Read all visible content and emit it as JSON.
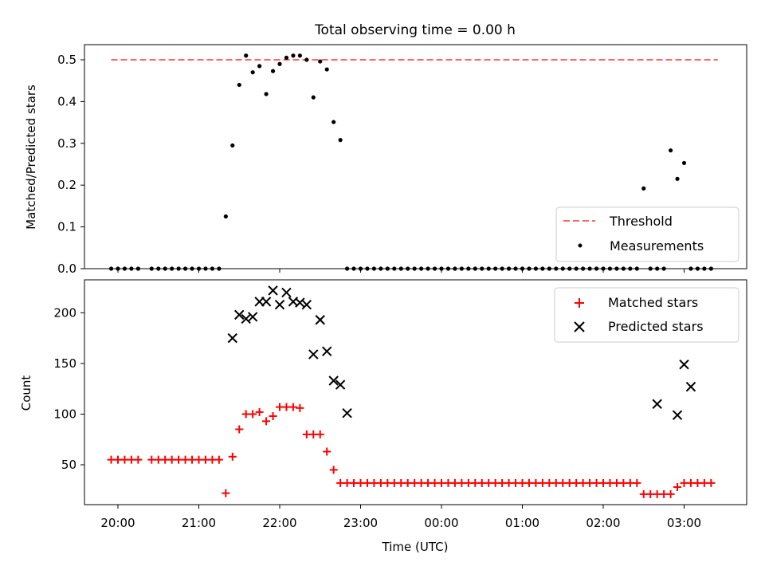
{
  "chart_data": [
    {
      "type": "scatter",
      "title": "Total observing time = 0.00 h",
      "xlabel": "",
      "ylabel": "Matched/Predicted stars",
      "ylim": [
        0,
        0.53
      ],
      "yticks": [
        "0.0",
        "0.1",
        "0.2",
        "0.3",
        "0.4",
        "0.5"
      ],
      "legend_position": "lower-right",
      "threshold": {
        "name": "Threshold",
        "value": 0.5,
        "x_range": [
          "19:55",
          "03:25"
        ],
        "color": "#ff6666"
      },
      "series": [
        {
          "name": "Measurements",
          "color": "#000000",
          "x": [
            "19:55",
            "20:00",
            "20:05",
            "20:10",
            "20:15",
            "20:25",
            "20:30",
            "20:35",
            "20:40",
            "20:45",
            "20:50",
            "20:55",
            "21:00",
            "21:05",
            "21:10",
            "21:15",
            "21:20",
            "21:25",
            "21:30",
            "21:35",
            "21:40",
            "21:45",
            "21:50",
            "21:55",
            "22:00",
            "22:05",
            "22:10",
            "22:15",
            "22:20",
            "22:25",
            "22:30",
            "22:35",
            "22:40",
            "22:45",
            "22:50",
            "22:55",
            "23:00",
            "23:05",
            "23:10",
            "23:15",
            "23:20",
            "23:25",
            "23:30",
            "23:35",
            "23:40",
            "23:45",
            "23:50",
            "23:55",
            "00:00",
            "00:05",
            "00:10",
            "00:15",
            "00:20",
            "00:25",
            "00:30",
            "00:35",
            "00:40",
            "00:45",
            "00:50",
            "00:55",
            "01:00",
            "01:05",
            "01:10",
            "01:15",
            "01:20",
            "01:25",
            "01:30",
            "01:35",
            "01:40",
            "01:45",
            "01:50",
            "01:55",
            "02:00",
            "02:05",
            "02:10",
            "02:15",
            "02:20",
            "02:25",
            "02:30",
            "02:35",
            "02:40",
            "02:45",
            "02:50",
            "02:55",
            "03:00",
            "03:05",
            "03:10",
            "03:15",
            "03:20"
          ],
          "y": [
            0,
            0,
            0,
            0,
            0,
            0,
            0,
            0,
            0,
            0,
            0,
            0,
            0,
            0,
            0,
            0,
            0.125,
            0.295,
            0.44,
            0.51,
            0.47,
            0.485,
            0.418,
            0.473,
            0.49,
            0.505,
            0.51,
            0.51,
            0.5,
            0.41,
            0.496,
            0.477,
            0.351,
            0.308,
            0,
            0,
            0,
            0,
            0,
            0,
            0,
            0,
            0,
            0,
            0,
            0,
            0,
            0,
            0,
            0,
            0,
            0,
            0,
            0,
            0,
            0,
            0,
            0,
            0,
            0,
            0,
            0,
            0,
            0,
            0,
            0,
            0,
            0,
            0,
            0,
            0,
            0,
            0,
            0,
            0,
            0,
            0,
            0,
            0.192,
            0,
            0,
            0,
            0.283,
            0.215,
            0.253,
            0,
            0,
            0,
            0
          ]
        }
      ]
    },
    {
      "type": "scatter",
      "title": "",
      "xlabel": "Time (UTC)",
      "ylabel": "Count",
      "ylim": [
        11,
        235
      ],
      "yticks": [
        "50",
        "100",
        "150",
        "200"
      ],
      "xticks": [
        "20:00",
        "21:00",
        "22:00",
        "23:00",
        "00:00",
        "01:00",
        "02:00",
        "03:00"
      ],
      "legend_position": "upper-right",
      "series": [
        {
          "name": "Matched stars",
          "marker": "+",
          "color": "#ff0000",
          "x": [
            "19:55",
            "20:00",
            "20:05",
            "20:10",
            "20:15",
            "20:25",
            "20:30",
            "20:35",
            "20:40",
            "20:45",
            "20:50",
            "20:55",
            "21:00",
            "21:05",
            "21:10",
            "21:15",
            "21:20",
            "21:25",
            "21:30",
            "21:35",
            "21:40",
            "21:45",
            "21:50",
            "21:55",
            "22:00",
            "22:05",
            "22:10",
            "22:15",
            "22:20",
            "22:25",
            "22:30",
            "22:35",
            "22:40",
            "22:45",
            "22:50",
            "22:55",
            "23:00",
            "23:05",
            "23:10",
            "23:15",
            "23:20",
            "23:25",
            "23:30",
            "23:35",
            "23:40",
            "23:45",
            "23:50",
            "23:55",
            "00:00",
            "00:05",
            "00:10",
            "00:15",
            "00:20",
            "00:25",
            "00:30",
            "00:35",
            "00:40",
            "00:45",
            "00:50",
            "00:55",
            "01:00",
            "01:05",
            "01:10",
            "01:15",
            "01:20",
            "01:25",
            "01:30",
            "01:35",
            "01:40",
            "01:45",
            "01:50",
            "01:55",
            "02:00",
            "02:05",
            "02:10",
            "02:15",
            "02:20",
            "02:25",
            "02:30",
            "02:35",
            "02:40",
            "02:45",
            "02:50",
            "02:55",
            "03:00",
            "03:05",
            "03:10",
            "03:15",
            "03:20"
          ],
          "y": [
            55,
            55,
            55,
            55,
            55,
            55,
            55,
            55,
            55,
            55,
            55,
            55,
            55,
            55,
            55,
            55,
            22,
            58,
            85,
            100,
            100,
            102,
            93,
            98,
            107,
            107,
            107,
            106,
            80,
            80,
            80,
            63,
            45,
            32,
            32,
            32,
            32,
            32,
            32,
            32,
            32,
            32,
            32,
            32,
            32,
            32,
            32,
            32,
            32,
            32,
            32,
            32,
            32,
            32,
            32,
            32,
            32,
            32,
            32,
            32,
            32,
            32,
            32,
            32,
            32,
            32,
            32,
            32,
            32,
            32,
            32,
            32,
            32,
            32,
            32,
            32,
            32,
            32,
            21,
            21,
            21,
            21,
            21,
            28,
            32,
            32,
            32,
            32,
            32
          ]
        },
        {
          "name": "Predicted stars",
          "marker": "x",
          "color": "#000000",
          "x": [
            "21:25",
            "21:30",
            "21:35",
            "21:40",
            "21:45",
            "21:50",
            "21:55",
            "22:00",
            "22:05",
            "22:10",
            "22:15",
            "22:20",
            "22:25",
            "22:30",
            "22:35",
            "22:40",
            "22:45",
            "22:50",
            "02:40",
            "02:55",
            "03:00",
            "03:05"
          ],
          "y": [
            175,
            198,
            194,
            196,
            211,
            211,
            222,
            208,
            220,
            211,
            210,
            208,
            159,
            193,
            162,
            133,
            129,
            101,
            110,
            99,
            149,
            127
          ]
        }
      ]
    }
  ]
}
